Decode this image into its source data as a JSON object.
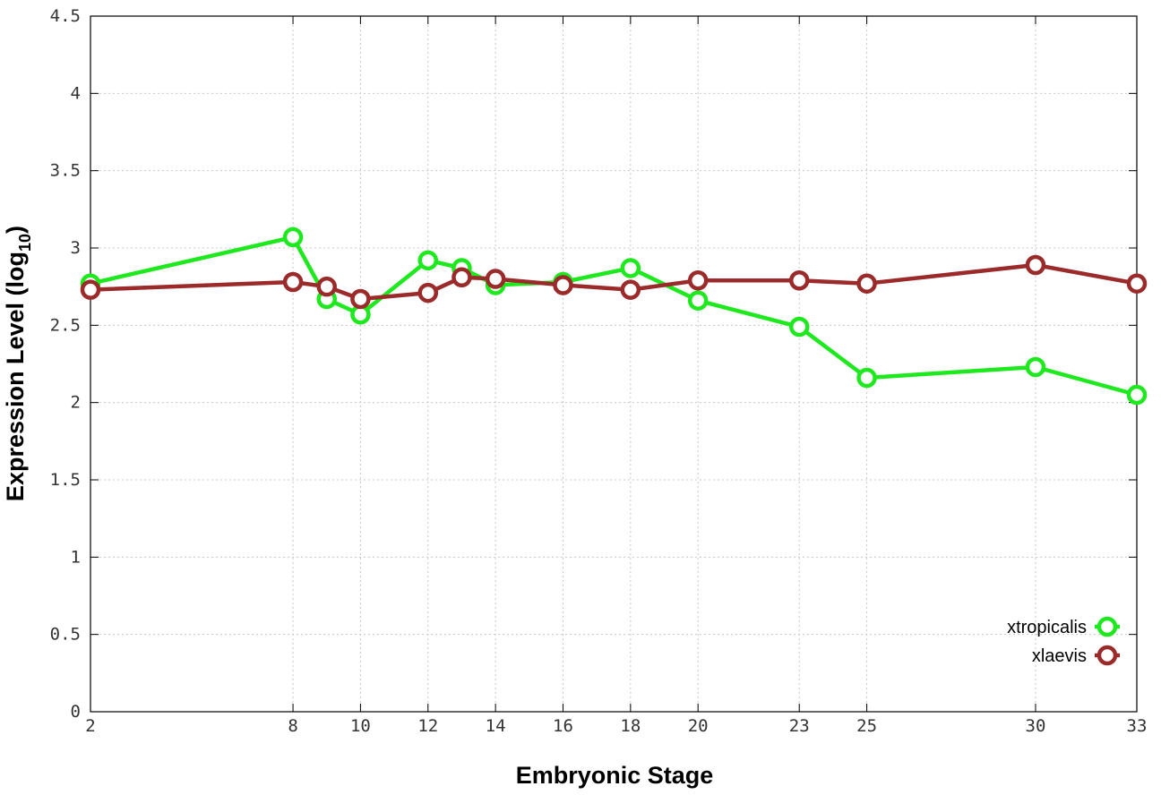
{
  "chart_data": {
    "type": "line",
    "title": "",
    "xlabel": "Embryonic Stage",
    "ylabel_main": "Expression Level (log",
    "ylabel_sub": "10",
    "ylabel_close": ")",
    "x_ticks": [
      2,
      8,
      10,
      12,
      14,
      16,
      18,
      20,
      23,
      25,
      30,
      33
    ],
    "x_tick_labels": [
      "2",
      "8",
      "10",
      "12",
      "14",
      "16",
      "18",
      "20",
      "23",
      "25",
      "30",
      "33"
    ],
    "y_ticks": [
      0,
      0.5,
      1,
      1.5,
      2,
      2.5,
      3,
      3.5,
      4,
      4.5
    ],
    "y_tick_labels": [
      "0",
      "0.5",
      "1",
      "1.5",
      "2",
      "2.5",
      "3",
      "3.5",
      "4",
      "4.5"
    ],
    "xlim": [
      2,
      33
    ],
    "ylim": [
      0,
      4.5
    ],
    "grid": true,
    "legend_position": "bottom-right",
    "series": [
      {
        "name": "xtropicalis",
        "color": "#1ee81e",
        "x": [
          2,
          8,
          9,
          10,
          12,
          13,
          14,
          16,
          18,
          20,
          23,
          25,
          30,
          33
        ],
        "values": [
          2.77,
          3.07,
          2.67,
          2.57,
          2.92,
          2.87,
          2.76,
          2.78,
          2.87,
          2.66,
          2.49,
          2.16,
          2.23,
          2.05
        ]
      },
      {
        "name": "xlaevis",
        "color": "#9b2a2a",
        "x": [
          2,
          8,
          9,
          10,
          12,
          13,
          14,
          16,
          18,
          20,
          23,
          25,
          30,
          33
        ],
        "values": [
          2.73,
          2.78,
          2.75,
          2.67,
          2.71,
          2.81,
          2.8,
          2.76,
          2.73,
          2.79,
          2.79,
          2.77,
          2.89,
          2.77
        ]
      }
    ]
  }
}
